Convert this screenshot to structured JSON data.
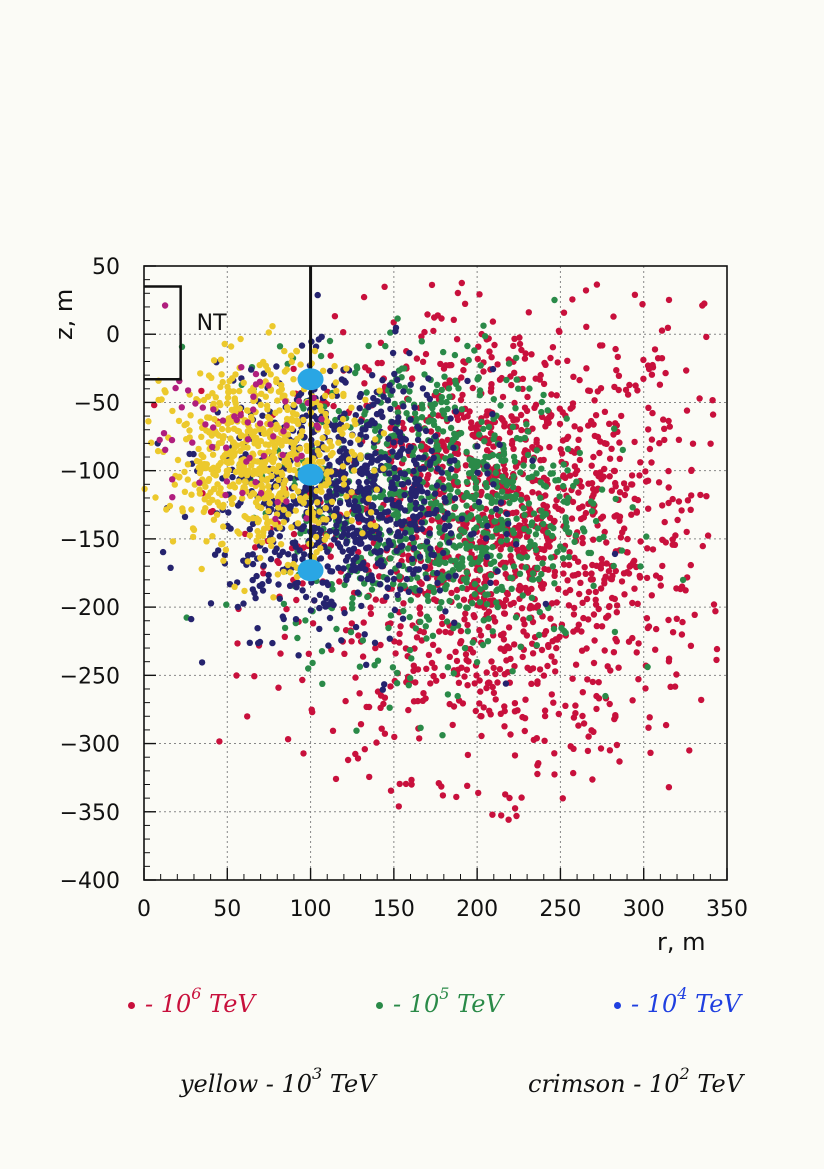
{
  "chart_data": {
    "type": "scatter",
    "xlabel": "r, m",
    "ylabel": "z, m",
    "xlim": [
      0,
      350
    ],
    "ylim": [
      -400,
      50
    ],
    "xticks": [
      0,
      50,
      100,
      150,
      200,
      250,
      300,
      350
    ],
    "yticks": [
      50,
      0,
      -50,
      -100,
      -150,
      -200,
      -250,
      -300,
      -350,
      -400
    ],
    "grid": true,
    "annotation": "NT",
    "detector_string": {
      "r": 100,
      "z_top": 50,
      "z_bottom": -175
    },
    "nt_bracket": {
      "r": 22,
      "z_top": 35,
      "z_bottom": -33
    },
    "detector_modules": [
      {
        "r": 100,
        "z": -33
      },
      {
        "r": 100,
        "z": -103
      },
      {
        "r": 100,
        "z": -173
      }
    ],
    "series": [
      {
        "name": "10^6 TeV",
        "color": "#c8103c",
        "cluster": {
          "r_center": 215,
          "z_center": -150,
          "r_spread": 60,
          "z_spread": 85,
          "count": 1500
        }
      },
      {
        "name": "10^5 TeV",
        "color": "#2a8a48",
        "cluster": {
          "r_center": 175,
          "z_center": -125,
          "r_spread": 45,
          "z_spread": 55,
          "count": 900
        }
      },
      {
        "name": "10^4 TeV",
        "color": "#25236e",
        "cluster": {
          "r_center": 120,
          "z_center": -120,
          "r_spread": 38,
          "z_spread": 45,
          "count": 850
        }
      },
      {
        "name": "10^3 TeV",
        "color": "#ecc92c",
        "cluster": {
          "r_center": 72,
          "z_center": -90,
          "r_spread": 28,
          "z_spread": 35,
          "count": 650
        }
      },
      {
        "name": "10^2 TeV",
        "color": "#b01e7e",
        "cluster": {
          "r_center": 50,
          "z_center": -70,
          "r_spread": 30,
          "z_spread": 30,
          "count": 60
        }
      }
    ]
  },
  "legend": {
    "row1": [
      {
        "prefix": "- 10",
        "exp": "6",
        "unit": "TeV",
        "color": "#c8103c"
      },
      {
        "prefix": "- 10",
        "exp": "5",
        "unit": "TeV",
        "color": "#2a8a48"
      },
      {
        "prefix": "- 10",
        "exp": "4",
        "unit": "TeV",
        "color": "#1f3fe0"
      }
    ],
    "row2": [
      {
        "prefix": "yellow - 10",
        "exp": "3",
        "unit": "TeV"
      },
      {
        "prefix": "crimson - 10",
        "exp": "2",
        "unit": "TeV"
      }
    ]
  }
}
